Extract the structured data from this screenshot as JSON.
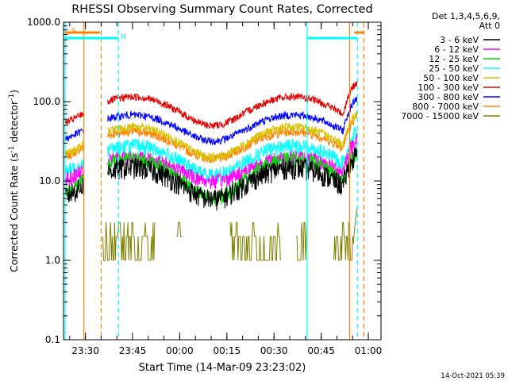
{
  "chart_data": {
    "type": "line",
    "title": "RHESSI Observing Summary Count Rates, Corrected",
    "xlabel": "Start Time (14-Mar-09 23:23:02)",
    "ylabel": "Corrected Count Rate (s⁻¹ detector⁻¹)",
    "ylabel_parts": {
      "main": "Corrected Count Rate (s",
      "sup1": "-1",
      "mid": " detector",
      "sup2": "-1",
      "end": ")"
    },
    "y_scale": "log",
    "ylim": [
      0.1,
      1000
    ],
    "xlim_minutes_after_start": [
      0,
      101
    ],
    "x_ticks": [
      {
        "label": "23:30",
        "t": 6.97
      },
      {
        "label": "23:45",
        "t": 21.97
      },
      {
        "label": "00:00",
        "t": 36.97
      },
      {
        "label": "00:15",
        "t": 51.97
      },
      {
        "label": "00:30",
        "t": 66.97
      },
      {
        "label": "00:45",
        "t": 81.97
      },
      {
        "label": "01:00",
        "t": 96.97
      }
    ],
    "y_ticks": [
      {
        "label": "0.1",
        "v": 0.1
      },
      {
        "label": "1.0",
        "v": 1
      },
      {
        "label": "10.0",
        "v": 10
      },
      {
        "label": "100.0",
        "v": 100
      },
      {
        "label": "1000.0",
        "v": 1000
      }
    ],
    "legend_header": [
      "Det 1,3,4,5,6,9,",
      "Att 0"
    ],
    "legend_position": "right",
    "series": [
      {
        "name": "3 - 6 keV",
        "color": "#000000"
      },
      {
        "name": "6 - 12 keV",
        "color": "#ff00ff"
      },
      {
        "name": "12 - 25 keV",
        "color": "#00dd00"
      },
      {
        "name": "25 - 50 keV",
        "color": "#00ffff"
      },
      {
        "name": "50 - 100 keV",
        "color": "#d8c000"
      },
      {
        "name": "100 - 300 keV",
        "color": "#e00000"
      },
      {
        "name": "300 - 800 keV",
        "color": "#0000ff"
      },
      {
        "name": "800 - 7000 keV",
        "color": "#ff8000"
      },
      {
        "name": "7000 - 15000 keV",
        "color": "#808000"
      }
    ],
    "shaded_bands": [
      {
        "label": "S",
        "color": "#ff8000",
        "t0": 0.5,
        "t1": 11.5
      },
      {
        "label": "N",
        "color": "#00ffff",
        "t0": 0.5,
        "t1": 17.5
      }
    ],
    "markers": [
      {
        "color": "#00ffff",
        "t": 0.5,
        "style": "solid"
      },
      {
        "color": "#ff8000",
        "t": 6.5,
        "style": "solid"
      },
      {
        "color": "#ff8000",
        "t": 12.0,
        "style": "dashed"
      },
      {
        "color": "#00ffff",
        "t": 17.5,
        "style": "dashed"
      },
      {
        "color": "#00ffff",
        "t": 77.5,
        "style": "solid"
      },
      {
        "color": "#ff8000",
        "t": 91.0,
        "style": "solid"
      },
      {
        "color": "#00ffff",
        "t": 93.5,
        "style": "dashed"
      },
      {
        "color": "#ff8000",
        "t": 95.5,
        "style": "dashed"
      }
    ],
    "footer": "14-Oct-2021 05:39"
  }
}
